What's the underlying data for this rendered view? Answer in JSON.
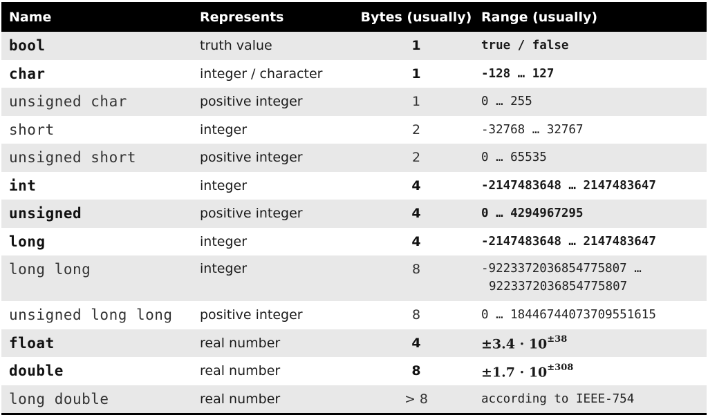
{
  "headers": {
    "name": "Name",
    "represents": "Represents",
    "bytes": "Bytes (usually)",
    "range": "Range (usually)"
  },
  "rows": [
    {
      "name": "bool",
      "represents": "truth value",
      "bytes": "1",
      "range": "true / false"
    },
    {
      "name": "char",
      "represents": "integer / character",
      "bytes": "1",
      "range": "-128 … 127"
    },
    {
      "name": "unsigned char",
      "represents": "positive integer",
      "bytes": "1",
      "range": "0 … 255"
    },
    {
      "name": "short",
      "represents": "integer",
      "bytes": "2",
      "range": "-32768 … 32767"
    },
    {
      "name": "unsigned short",
      "represents": "positive integer",
      "bytes": "2",
      "range": "0 … 65535"
    },
    {
      "name": "int",
      "represents": "integer",
      "bytes": "4",
      "range": "-2147483648 … 2147483647"
    },
    {
      "name": "unsigned",
      "represents": "positive integer",
      "bytes": "4",
      "range": "0 … 4294967295"
    },
    {
      "name": "long",
      "represents": "integer",
      "bytes": "4",
      "range": "-2147483648 … 2147483647"
    },
    {
      "name": "long long",
      "represents": "integer",
      "bytes": "8",
      "range_line1": "-9223372036854775807 …",
      "range_line2": "9223372036854775807"
    },
    {
      "name": "unsigned long long",
      "represents": "positive integer",
      "bytes": "8",
      "range": "0 … 18446744073709551615"
    },
    {
      "name": "float",
      "represents": "real number",
      "bytes": "4",
      "range_base": "±3.4 · 10",
      "range_exp": "±38"
    },
    {
      "name": "double",
      "represents": "real number",
      "bytes": "8",
      "range_base": "±1.7 · 10",
      "range_exp": "±308"
    },
    {
      "name": "long double",
      "represents": "real number",
      "bytes": "> 8",
      "range": "according to IEEE-754"
    }
  ]
}
